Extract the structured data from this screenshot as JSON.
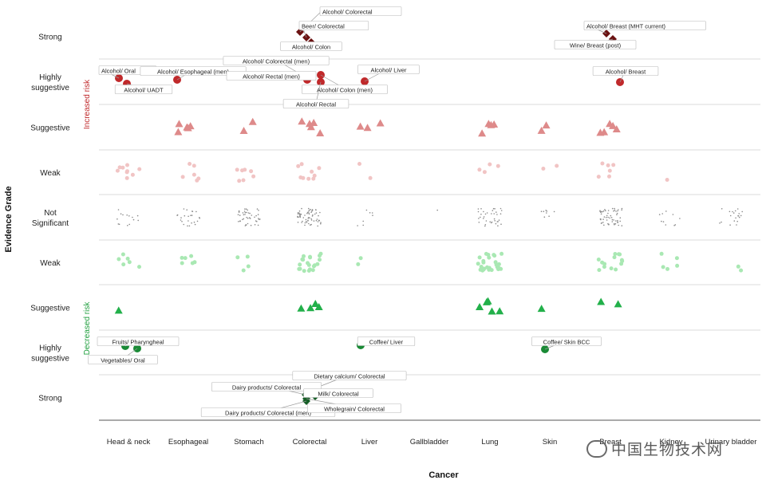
{
  "chart_data": {
    "type": "scatter",
    "xlabel": "Cancer",
    "ylabel": "Evidence Grade",
    "categories": [
      "Head & neck",
      "Esophageal",
      "Stomach",
      "Colorectal",
      "Liver",
      "Gallbladder",
      "Lung",
      "Skin",
      "Breast",
      "Kidney",
      "Urinary bladder"
    ],
    "grades": [
      "Strong",
      "Highly suggestive",
      "Suggestive",
      "Weak",
      "Not Significant",
      "Weak",
      "Suggestive",
      "Highly suggestive",
      "Strong"
    ],
    "grade_lines": [
      [
        "Strong"
      ],
      [
        "Highly",
        "suggestive"
      ],
      [
        "Suggestive"
      ],
      [
        "Weak"
      ],
      [
        "Not",
        "Significant"
      ],
      [
        "Weak"
      ],
      [
        "Suggestive"
      ],
      [
        "Highly",
        "suggestive"
      ],
      [
        "Strong"
      ]
    ],
    "side_labels": {
      "increased": "Increased risk",
      "decreased": "Decreased risk"
    },
    "grid": true,
    "colors": {
      "strong_increased": "#6b1212",
      "highly_increased": "#c0292b",
      "suggestive_increased": "#de8a8a",
      "weak_increased": "#f1c4c4",
      "not_significant": "#8a8a8a",
      "weak_decreased": "#a9e8b3",
      "suggestive_decreased": "#22b04a",
      "highly_decreased": "#198a35",
      "strong_decreased": "#155e26"
    },
    "points": [
      {
        "cat": 3,
        "grade": 0,
        "shape": "diamond",
        "label": "Alcohol/ Colorectal"
      },
      {
        "cat": 3,
        "grade": 0,
        "shape": "diamond",
        "label": "Beer/ Colorectal"
      },
      {
        "cat": 3,
        "grade": 0,
        "shape": "diamond",
        "label": "Alcohol/ Colon"
      },
      {
        "cat": 8,
        "grade": 0,
        "shape": "diamond",
        "label": "Alcohol/ Breast (MHT current)"
      },
      {
        "cat": 8,
        "grade": 0,
        "shape": "diamond",
        "label": "Wine/ Breast (post)"
      },
      {
        "cat": 0,
        "grade": 1,
        "shape": "circle",
        "label": "Alcohol/ Oral"
      },
      {
        "cat": 0,
        "grade": 1,
        "shape": "circle",
        "label": "Alcohol/ UADT"
      },
      {
        "cat": 1,
        "grade": 1,
        "shape": "circle",
        "label": "Alcohol/ Esophageal (men)"
      },
      {
        "cat": 3,
        "grade": 1,
        "shape": "circle",
        "label": "Alcohol/ Colorectal (men)"
      },
      {
        "cat": 3,
        "grade": 1,
        "shape": "circle",
        "label": "Alcohol/ Rectal (men)"
      },
      {
        "cat": 3,
        "grade": 1,
        "shape": "circle",
        "label": "Alcohol/ Colon (men)"
      },
      {
        "cat": 3,
        "grade": 1,
        "shape": "circle",
        "label": "Alcohol/ Rectal"
      },
      {
        "cat": 4,
        "grade": 1,
        "shape": "circle",
        "label": "Alcohol/ Liver"
      },
      {
        "cat": 8,
        "grade": 1,
        "shape": "circle",
        "label": "Alcohol/ Breast"
      },
      {
        "cat": 0,
        "grade": 7,
        "shape": "circle",
        "label": "Fruits/ Pharyngheal"
      },
      {
        "cat": 0,
        "grade": 7,
        "shape": "circle",
        "label": "Vegetables/ Oral"
      },
      {
        "cat": 4,
        "grade": 7,
        "shape": "circle",
        "label": "Coffee/ Liver"
      },
      {
        "cat": 7,
        "grade": 7,
        "shape": "circle",
        "label": "Coffee/ Skin BCC"
      },
      {
        "cat": 3,
        "grade": 8,
        "shape": "diamond",
        "label": "Dietary calcium/ Colorectal"
      },
      {
        "cat": 3,
        "grade": 8,
        "shape": "diamond",
        "label": "Dairy products/ Colorectal"
      },
      {
        "cat": 3,
        "grade": 8,
        "shape": "diamond",
        "label": "Milk/ Colorectal"
      },
      {
        "cat": 3,
        "grade": 8,
        "shape": "diamond",
        "label": "Dairy products/ Colorectal (men)"
      },
      {
        "cat": 3,
        "grade": 8,
        "shape": "diamond",
        "label": "Wholegrain/ Colorectal"
      }
    ],
    "counts": {
      "suggestive_increased": [
        0,
        5,
        2,
        5,
        3,
        0,
        4,
        2,
        5,
        0,
        0
      ],
      "weak_increased": [
        9,
        6,
        7,
        9,
        2,
        0,
        4,
        2,
        6,
        1,
        0
      ],
      "not_significant": [
        14,
        24,
        44,
        66,
        7,
        1,
        36,
        8,
        55,
        10,
        20
      ],
      "weak_decreased": [
        6,
        6,
        4,
        20,
        2,
        0,
        26,
        0,
        14,
        5,
        2
      ],
      "suggestive_decreased": [
        1,
        0,
        0,
        4,
        0,
        0,
        5,
        1,
        2,
        0,
        0
      ]
    }
  },
  "watermark": "中国生物技术网"
}
